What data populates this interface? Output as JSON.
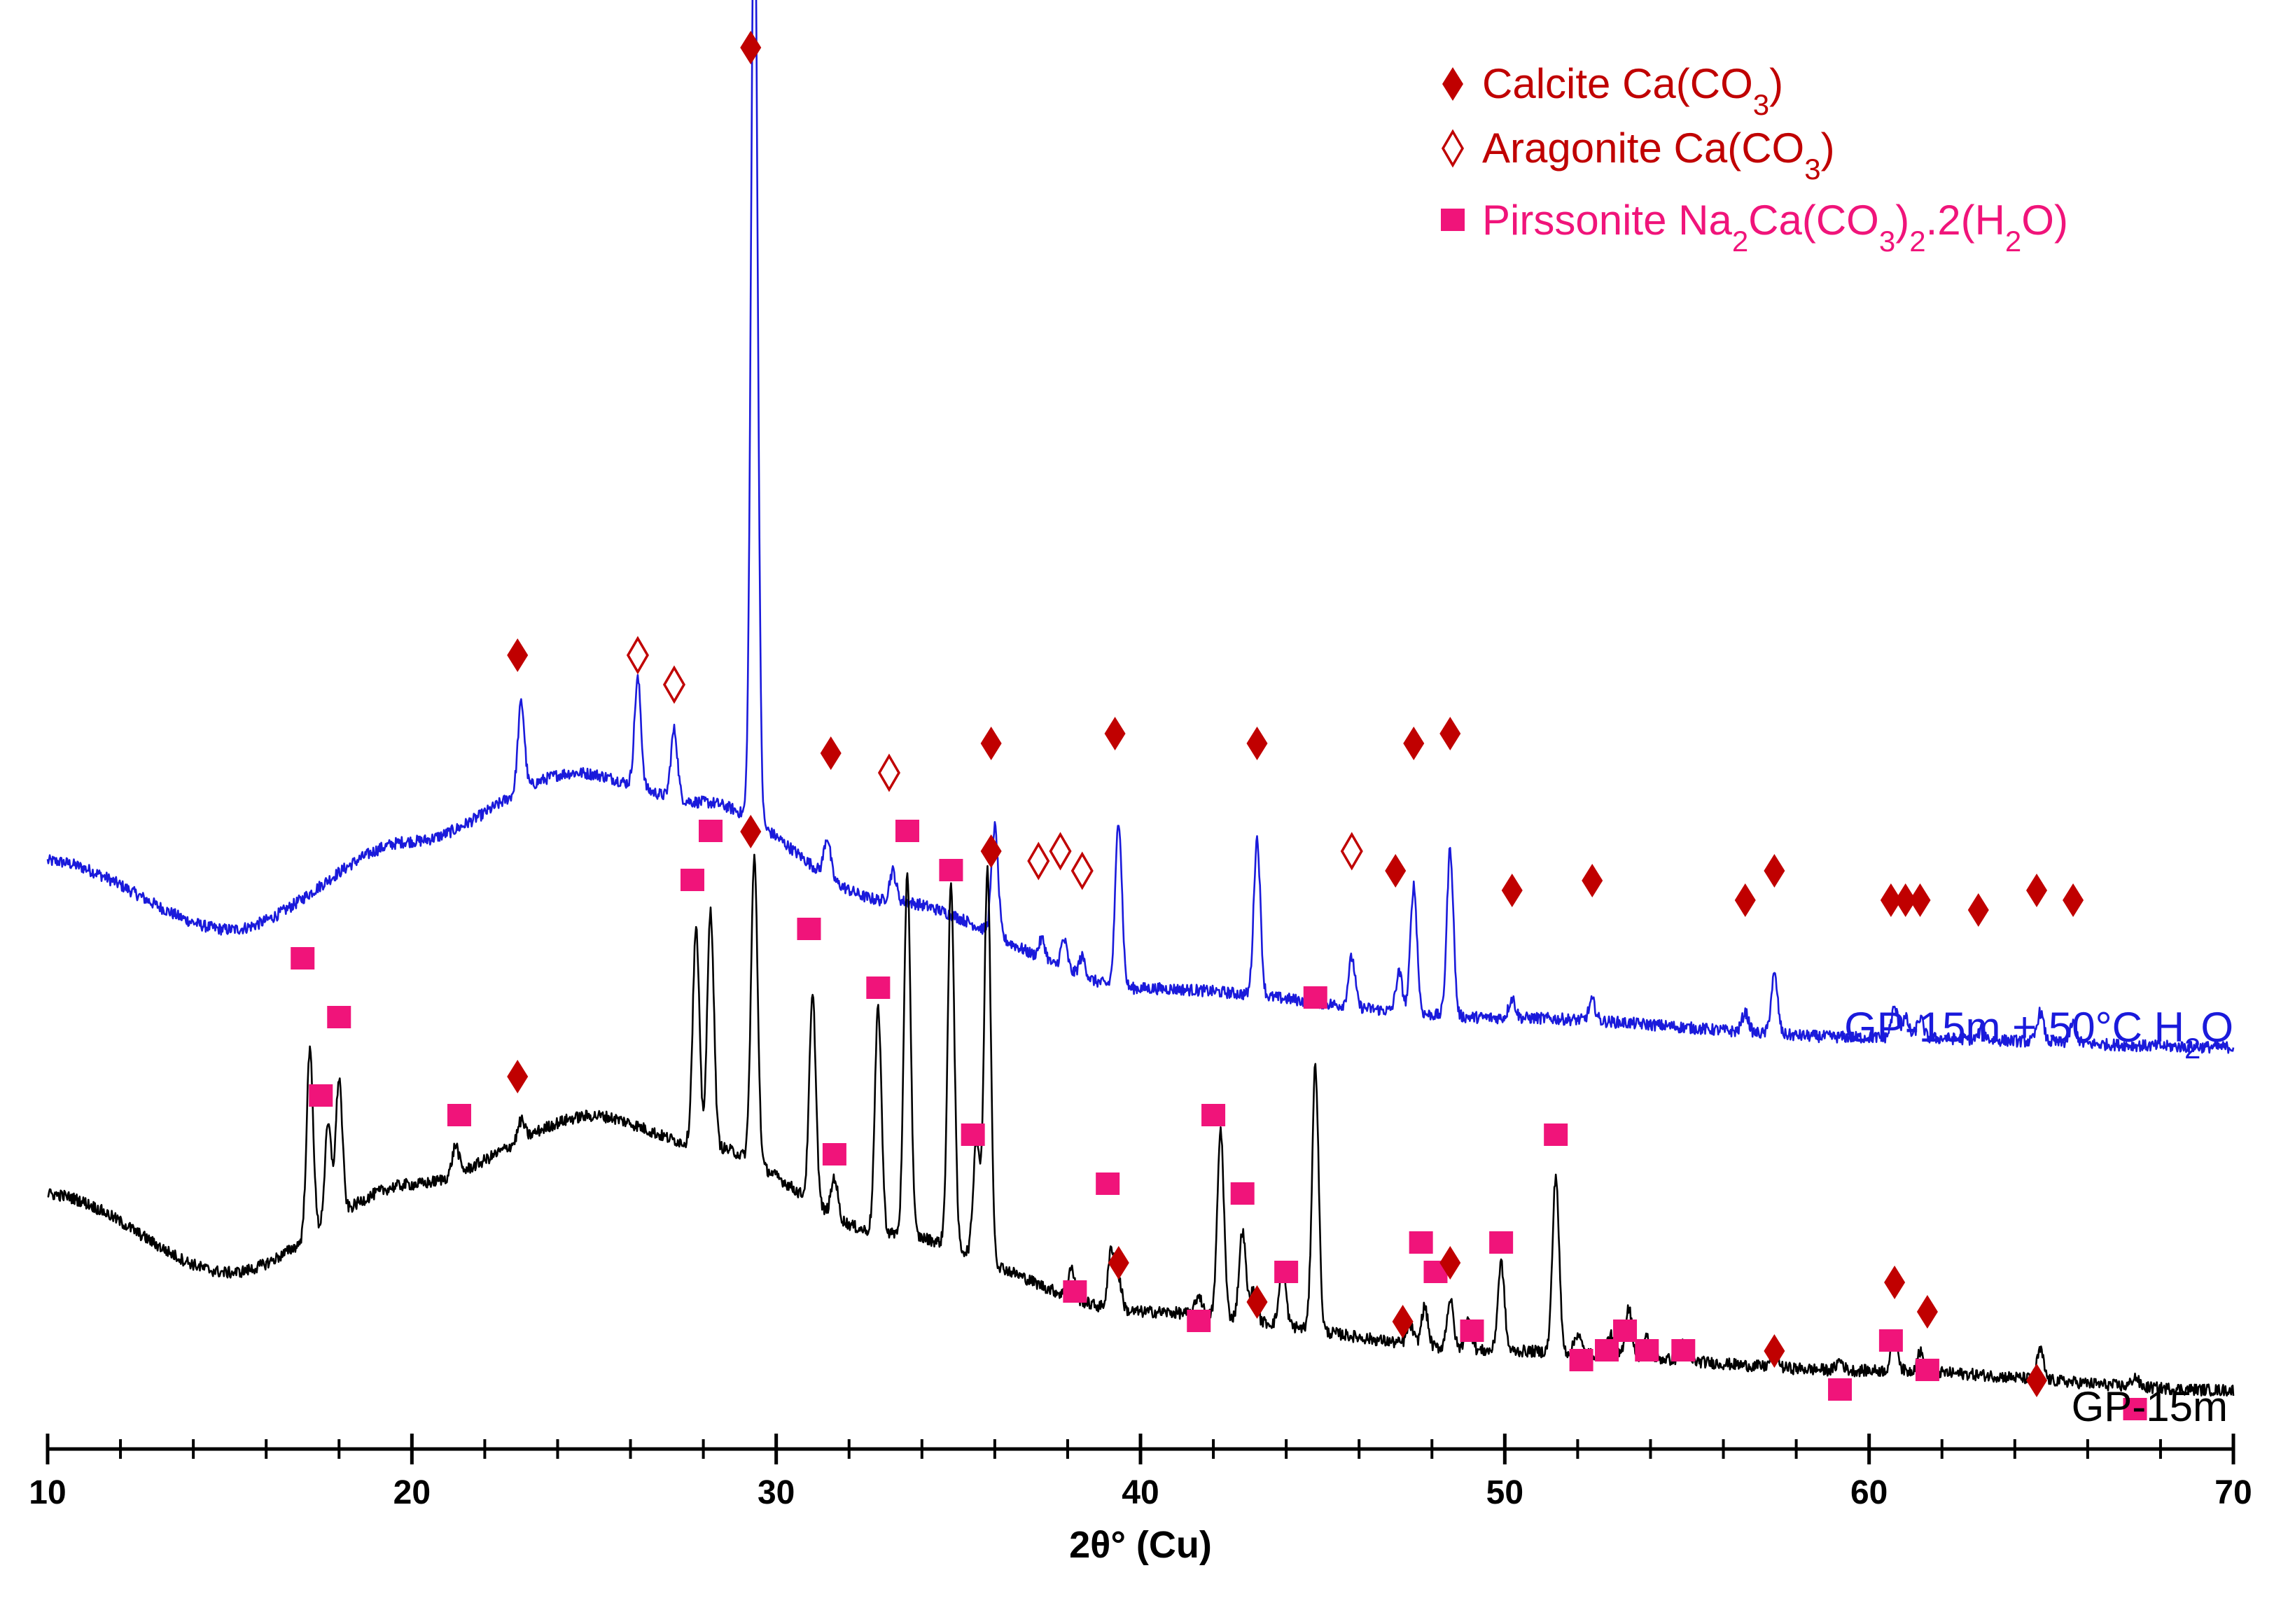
{
  "chart_data": {
    "type": "line",
    "xlabel": "2θ° (Cu)",
    "ylabel": "",
    "xlim": [
      10,
      70
    ],
    "xticks": [
      "10",
      "20",
      "30",
      "40",
      "50",
      "60",
      "70"
    ],
    "colors": {
      "calcite": "#c00000",
      "aragonite": "#c00000",
      "pirssonite": "#f0147a",
      "series_top": "#1a1adb",
      "series_bottom": "#000000"
    },
    "legend": {
      "placement": "top-right",
      "entries": [
        {
          "marker": "filled-diamond",
          "color": "#c00000",
          "label": "Calcite",
          "formula_html": "Ca(CO<tspan baseline-shift=\"sub\" font-size=\"42\">3</tspan>)",
          "formula": "Ca(CO3)"
        },
        {
          "marker": "open-diamond",
          "color": "#c00000",
          "label": "Aragonite",
          "formula": "Ca(CO3)"
        },
        {
          "marker": "square",
          "color": "#f0147a",
          "label": "Pirssonite",
          "formula": "Na2Ca(CO3)2.2(H2O)"
        }
      ]
    },
    "series": [
      {
        "name": "GP-15m + 50°C H2O",
        "label_text": "GP-15m + 50°C H",
        "label_sub": "2",
        "label_tail": "O",
        "color": "#1a1adb",
        "baseline": [
          [
            10,
            0.6
          ],
          [
            15,
            0.53
          ],
          [
            20,
            0.62
          ],
          [
            24.5,
            0.69
          ],
          [
            28,
            0.66
          ],
          [
            33,
            0.56
          ],
          [
            40,
            0.47
          ],
          [
            50,
            0.44
          ],
          [
            60,
            0.42
          ],
          [
            70,
            0.41
          ]
        ],
        "peaks": [
          {
            "x": 23.0,
            "h": 0.09
          },
          {
            "x": 26.2,
            "h": 0.11
          },
          {
            "x": 27.2,
            "h": 0.07
          },
          {
            "x": 29.4,
            "h": 0.98
          },
          {
            "x": 31.4,
            "h": 0.04
          },
          {
            "x": 33.2,
            "h": 0.03
          },
          {
            "x": 36.0,
            "h": 0.11
          },
          {
            "x": 37.3,
            "h": 0.02
          },
          {
            "x": 37.9,
            "h": 0.03
          },
          {
            "x": 38.4,
            "h": 0.02
          },
          {
            "x": 39.4,
            "h": 0.17
          },
          {
            "x": 43.2,
            "h": 0.16
          },
          {
            "x": 45.8,
            "h": 0.05
          },
          {
            "x": 47.1,
            "h": 0.04
          },
          {
            "x": 47.5,
            "h": 0.13
          },
          {
            "x": 48.5,
            "h": 0.17
          },
          {
            "x": 50.2,
            "h": 0.02
          },
          {
            "x": 52.4,
            "h": 0.02
          },
          {
            "x": 56.6,
            "h": 0.02
          },
          {
            "x": 57.4,
            "h": 0.06
          },
          {
            "x": 60.7,
            "h": 0.03
          },
          {
            "x": 61.0,
            "h": 0.02
          },
          {
            "x": 61.4,
            "h": 0.02
          },
          {
            "x": 63.1,
            "h": 0.01
          },
          {
            "x": 64.7,
            "h": 0.03
          },
          {
            "x": 65.6,
            "h": 0.02
          }
        ]
      },
      {
        "name": "GP-15m",
        "label_text": "GP-15m",
        "color": "#000000",
        "baseline": [
          [
            10,
            0.26
          ],
          [
            15,
            0.18
          ],
          [
            20,
            0.27
          ],
          [
            25,
            0.34
          ],
          [
            28,
            0.31
          ],
          [
            33,
            0.22
          ],
          [
            40,
            0.14
          ],
          [
            50,
            0.1
          ],
          [
            60,
            0.08
          ],
          [
            70,
            0.06
          ]
        ],
        "peaks": [
          {
            "x": 17.2,
            "h": 0.19
          },
          {
            "x": 17.7,
            "h": 0.1
          },
          {
            "x": 18.0,
            "h": 0.14
          },
          {
            "x": 21.2,
            "h": 0.03
          },
          {
            "x": 23.0,
            "h": 0.02
          },
          {
            "x": 27.8,
            "h": 0.22
          },
          {
            "x": 28.2,
            "h": 0.24
          },
          {
            "x": 29.4,
            "h": 0.31
          },
          {
            "x": 31.0,
            "h": 0.21
          },
          {
            "x": 31.6,
            "h": 0.04
          },
          {
            "x": 32.8,
            "h": 0.23
          },
          {
            "x": 33.6,
            "h": 0.37
          },
          {
            "x": 34.8,
            "h": 0.37
          },
          {
            "x": 35.5,
            "h": 0.12
          },
          {
            "x": 35.8,
            "h": 0.4
          },
          {
            "x": 38.1,
            "h": 0.03
          },
          {
            "x": 39.2,
            "h": 0.06
          },
          {
            "x": 39.4,
            "h": 0.03
          },
          {
            "x": 41.6,
            "h": 0.02
          },
          {
            "x": 42.2,
            "h": 0.19
          },
          {
            "x": 42.8,
            "h": 0.09
          },
          {
            "x": 43.1,
            "h": 0.03
          },
          {
            "x": 43.9,
            "h": 0.06
          },
          {
            "x": 44.8,
            "h": 0.27
          },
          {
            "x": 47.4,
            "h": 0.02
          },
          {
            "x": 47.8,
            "h": 0.04
          },
          {
            "x": 48.5,
            "h": 0.05
          },
          {
            "x": 49.0,
            "h": 0.03
          },
          {
            "x": 49.9,
            "h": 0.09
          },
          {
            "x": 51.4,
            "h": 0.18
          },
          {
            "x": 52.0,
            "h": 0.02
          },
          {
            "x": 52.9,
            "h": 0.02
          },
          {
            "x": 53.4,
            "h": 0.05
          },
          {
            "x": 53.9,
            "h": 0.02
          },
          {
            "x": 54.9,
            "h": 0.02
          },
          {
            "x": 57.4,
            "h": 0.02
          },
          {
            "x": 59.2,
            "h": 0.01
          },
          {
            "x": 60.7,
            "h": 0.04
          },
          {
            "x": 61.4,
            "h": 0.02
          },
          {
            "x": 64.7,
            "h": 0.03
          },
          {
            "x": 67.3,
            "h": 0.01
          }
        ]
      }
    ],
    "annotations": {
      "top": [
        {
          "type": "calcite",
          "x": 22.9,
          "y": 0.81
        },
        {
          "type": "aragonite",
          "x": 26.2,
          "y": 0.81
        },
        {
          "type": "aragonite",
          "x": 27.2,
          "y": 0.78
        },
        {
          "type": "calcite",
          "x": 29.3,
          "y": 1.43
        },
        {
          "type": "calcite",
          "x": 31.5,
          "y": 0.71
        },
        {
          "type": "aragonite",
          "x": 33.1,
          "y": 0.69
        },
        {
          "type": "calcite",
          "x": 35.9,
          "y": 0.72
        },
        {
          "type": "aragonite",
          "x": 37.2,
          "y": 0.6
        },
        {
          "type": "aragonite",
          "x": 37.8,
          "y": 0.61
        },
        {
          "type": "aragonite",
          "x": 38.4,
          "y": 0.59
        },
        {
          "type": "calcite",
          "x": 39.3,
          "y": 0.73
        },
        {
          "type": "calcite",
          "x": 43.2,
          "y": 0.72
        },
        {
          "type": "aragonite",
          "x": 45.8,
          "y": 0.61
        },
        {
          "type": "calcite",
          "x": 47.0,
          "y": 0.59
        },
        {
          "type": "calcite",
          "x": 47.5,
          "y": 0.72
        },
        {
          "type": "calcite",
          "x": 48.5,
          "y": 0.73
        },
        {
          "type": "calcite",
          "x": 50.2,
          "y": 0.57
        },
        {
          "type": "calcite",
          "x": 52.4,
          "y": 0.58
        },
        {
          "type": "calcite",
          "x": 56.6,
          "y": 0.56
        },
        {
          "type": "calcite",
          "x": 57.4,
          "y": 0.59
        },
        {
          "type": "calcite",
          "x": 60.6,
          "y": 0.56
        },
        {
          "type": "calcite",
          "x": 61.0,
          "y": 0.56
        },
        {
          "type": "calcite",
          "x": 61.4,
          "y": 0.56
        },
        {
          "type": "calcite",
          "x": 63.0,
          "y": 0.55
        },
        {
          "type": "calcite",
          "x": 64.6,
          "y": 0.57
        },
        {
          "type": "calcite",
          "x": 65.6,
          "y": 0.56
        }
      ],
      "bottom": [
        {
          "type": "pirssonite",
          "x": 17.0,
          "y": 0.5
        },
        {
          "type": "pirssonite",
          "x": 17.5,
          "y": 0.36
        },
        {
          "type": "pirssonite",
          "x": 18.0,
          "y": 0.44
        },
        {
          "type": "pirssonite",
          "x": 21.3,
          "y": 0.34
        },
        {
          "type": "calcite",
          "x": 22.9,
          "y": 0.38
        },
        {
          "type": "pirssonite",
          "x": 27.7,
          "y": 0.58
        },
        {
          "type": "pirssonite",
          "x": 28.2,
          "y": 0.63
        },
        {
          "type": "calcite",
          "x": 29.3,
          "y": 0.63
        },
        {
          "type": "pirssonite",
          "x": 30.9,
          "y": 0.53
        },
        {
          "type": "pirssonite",
          "x": 31.6,
          "y": 0.3
        },
        {
          "type": "pirssonite",
          "x": 32.8,
          "y": 0.47
        },
        {
          "type": "pirssonite",
          "x": 33.6,
          "y": 0.63
        },
        {
          "type": "pirssonite",
          "x": 34.8,
          "y": 0.59
        },
        {
          "type": "pirssonite",
          "x": 35.4,
          "y": 0.32
        },
        {
          "type": "calcite",
          "x": 35.9,
          "y": 0.61
        },
        {
          "type": "pirssonite",
          "x": 38.2,
          "y": 0.16
        },
        {
          "type": "pirssonite",
          "x": 39.1,
          "y": 0.27
        },
        {
          "type": "calcite",
          "x": 39.4,
          "y": 0.19
        },
        {
          "type": "pirssonite",
          "x": 41.6,
          "y": 0.13
        },
        {
          "type": "pirssonite",
          "x": 42.0,
          "y": 0.34
        },
        {
          "type": "pirssonite",
          "x": 42.8,
          "y": 0.26
        },
        {
          "type": "calcite",
          "x": 43.2,
          "y": 0.15
        },
        {
          "type": "pirssonite",
          "x": 44.0,
          "y": 0.18
        },
        {
          "type": "pirssonite",
          "x": 44.8,
          "y": 0.46
        },
        {
          "type": "calcite",
          "x": 47.2,
          "y": 0.13
        },
        {
          "type": "pirssonite",
          "x": 47.7,
          "y": 0.21
        },
        {
          "type": "pirssonite",
          "x": 48.1,
          "y": 0.18
        },
        {
          "type": "calcite",
          "x": 48.5,
          "y": 0.19
        },
        {
          "type": "pirssonite",
          "x": 49.1,
          "y": 0.12
        },
        {
          "type": "pirssonite",
          "x": 49.9,
          "y": 0.21
        },
        {
          "type": "pirssonite",
          "x": 51.4,
          "y": 0.32
        },
        {
          "type": "pirssonite",
          "x": 52.1,
          "y": 0.09
        },
        {
          "type": "pirssonite",
          "x": 52.8,
          "y": 0.1
        },
        {
          "type": "pirssonite",
          "x": 53.3,
          "y": 0.12
        },
        {
          "type": "pirssonite",
          "x": 53.9,
          "y": 0.1
        },
        {
          "type": "pirssonite",
          "x": 54.9,
          "y": 0.1
        },
        {
          "type": "calcite",
          "x": 57.4,
          "y": 0.1
        },
        {
          "type": "pirssonite",
          "x": 59.2,
          "y": 0.06
        },
        {
          "type": "pirssonite",
          "x": 60.6,
          "y": 0.11
        },
        {
          "type": "calcite",
          "x": 60.7,
          "y": 0.17
        },
        {
          "type": "pirssonite",
          "x": 61.6,
          "y": 0.08
        },
        {
          "type": "calcite",
          "x": 61.6,
          "y": 0.14
        },
        {
          "type": "calcite",
          "x": 64.6,
          "y": 0.07
        },
        {
          "type": "pirssonite",
          "x": 67.3,
          "y": 0.04
        }
      ]
    }
  }
}
